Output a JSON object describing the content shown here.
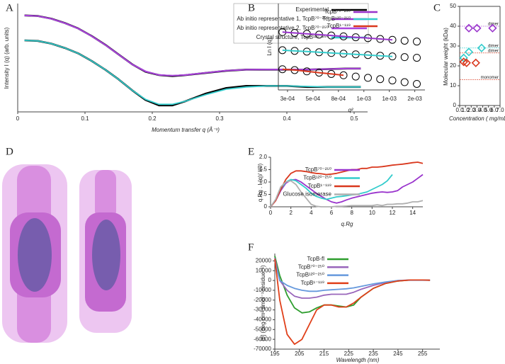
{
  "chart_data": [
    {
      "type": "line",
      "label": "A",
      "xlabel": "Momentum transfer q (Å⁻¹)",
      "ylabel": "Intensity I (q) (arb. units)",
      "xlim": [
        0,
        0.52
      ],
      "ylim": [
        0,
        100
      ],
      "xticks": [
        0,
        0.1,
        0.2,
        0.3,
        0.4,
        0.5
      ],
      "x": [
        0.01,
        0.03,
        0.05,
        0.07,
        0.09,
        0.11,
        0.13,
        0.15,
        0.17,
        0.19,
        0.21,
        0.23,
        0.25,
        0.28,
        0.31,
        0.34,
        0.37,
        0.4,
        0.43,
        0.46,
        0.49,
        0.51
      ],
      "series": [
        {
          "name": "Experimental",
          "color": "#000000",
          "values": [
            89,
            88.5,
            86,
            82,
            77,
            70,
            62,
            53,
            44,
            37,
            34,
            33,
            34,
            36,
            38,
            39,
            39,
            39,
            39,
            39.5,
            40,
            40
          ]
        },
        {
          "color": "#000000",
          "values": [
            66,
            65.5,
            63,
            59,
            54,
            47,
            39,
            30,
            20,
            11,
            6,
            6,
            10,
            17,
            22,
            24,
            24,
            24,
            23,
            23,
            23,
            23
          ]
        },
        {
          "name": "Ab initio representative 1, TcpB⁷⁰⁻²⁵⁰",
          "color": "#9933cc",
          "values": [
            89,
            88.5,
            86,
            82,
            77,
            70,
            62,
            53,
            44,
            37.5,
            34,
            33.5,
            34,
            36,
            38,
            39,
            39,
            39,
            39,
            39.5,
            40,
            40
          ]
        },
        {
          "name": "Ab initio representative 2, TcpB⁷⁰⁻²⁵⁰",
          "color": "#aa44dd",
          "values": [
            89,
            88.4,
            85.8,
            81.8,
            76.8,
            69.8,
            61.8,
            52.8,
            43.8,
            37.2,
            34.2,
            33.4,
            34.2,
            36.2,
            38.2,
            39,
            39.2,
            39.2,
            39.2,
            39.6,
            40,
            40
          ]
        },
        {
          "name": "Crystal structure, TcpB¹²⁰⁻²⁵⁰",
          "color": "#33cccc",
          "values": [
            66,
            65.5,
            63,
            59,
            54,
            47,
            39,
            30,
            20,
            11.5,
            7,
            7,
            10,
            16,
            21,
            23,
            24,
            24,
            23.5,
            23,
            23,
            23
          ]
        }
      ]
    },
    {
      "type": "scatter",
      "label": "B",
      "xlabel": "q²",
      "ylabel": "Ln I (q)",
      "marker_color": "#000000",
      "xlim": [
        0.00016,
        0.0016
      ],
      "ylim": [
        0,
        100
      ],
      "xticks": [
        {
          "value": 0.00025,
          "label": "3e-04"
        },
        {
          "value": 0.0005,
          "label": "5e-04"
        },
        {
          "value": 0.00075,
          "label": "8e-04"
        },
        {
          "value": 0.001,
          "label": "1e-03"
        },
        {
          "value": 0.00125,
          "label": "1e-03"
        },
        {
          "value": 0.0015,
          "label": "2e-03"
        }
      ],
      "x": [
        0.0002,
        0.00032,
        0.00044,
        0.00056,
        0.00068,
        0.0008,
        0.00092,
        0.00104,
        0.00116,
        0.00128,
        0.0014,
        0.00152
      ],
      "series": [
        {
          "name": "TcpB⁷⁰⁻²⁵⁰",
          "color": "#9933cc",
          "values": [
            67,
            66,
            65,
            64,
            63,
            62,
            61,
            60,
            59,
            58,
            57,
            56
          ],
          "fit": [
            67,
            66,
            65,
            64,
            63,
            62,
            61,
            60,
            59,
            58,
            null,
            null
          ]
        },
        {
          "name": "TcpB¹²⁰⁻²⁵⁰",
          "color": "#33cccc",
          "values": [
            46,
            45.2,
            44.4,
            43.6,
            42.8,
            42,
            41.2,
            40.4,
            39.6,
            38.8,
            38,
            37.2
          ],
          "fit": [
            46,
            45.2,
            44.4,
            43.6,
            42.8,
            42,
            41.2,
            40.4,
            39.6,
            38.8,
            null,
            null
          ]
        },
        {
          "name": "TcpB¹⁻¹¹⁹",
          "color": "#d9381e",
          "values": [
            24,
            23,
            21.5,
            20,
            18.5,
            17,
            15.5,
            14,
            12.5,
            11,
            9,
            7
          ],
          "fit": [
            24,
            23,
            21.5,
            20,
            18.5,
            17,
            null,
            null,
            null,
            null,
            null,
            null
          ]
        }
      ]
    },
    {
      "type": "scatter",
      "label": "C",
      "xlabel": "Concentration ( mg/mL )",
      "ylabel": "Molecular weight (kDa)",
      "marker": "diamond",
      "xlim": [
        0,
        7
      ],
      "ylim": [
        0,
        50
      ],
      "xticks": [
        {
          "value": 0,
          "label": "0.0"
        },
        {
          "value": 1,
          "label": "1.0"
        },
        {
          "value": 2,
          "label": "2.0"
        },
        {
          "value": 3,
          "label": "3.0"
        },
        {
          "value": 4,
          "label": "4.0"
        },
        {
          "value": 5,
          "label": "5.0"
        },
        {
          "value": 6,
          "label": "6.0"
        },
        {
          "value": 7,
          "label": "7.0"
        }
      ],
      "yticks": [
        0,
        10,
        20,
        30,
        40,
        50
      ],
      "hlines": [
        {
          "value": 40,
          "label": "dimer",
          "color": "#9933cc"
        },
        {
          "value": 29,
          "label": "dimer",
          "color": "#33cccc"
        },
        {
          "value": 26.5,
          "label": "dimer",
          "color": "#d9381e"
        },
        {
          "value": 13,
          "label": "monomer",
          "color": "#d9381e"
        }
      ],
      "series": [
        {
          "color": "#9933cc",
          "x": [
            1.6,
            3,
            5.7
          ],
          "values": [
            39,
            39,
            39
          ]
        },
        {
          "color": "#33cccc",
          "x": [
            0.7,
            1.6,
            3.8
          ],
          "values": [
            24,
            27,
            29
          ]
        },
        {
          "color": "#d9381e",
          "x": [
            0.7,
            1.2,
            2.8
          ],
          "values": [
            22,
            21.5,
            21.5
          ]
        }
      ]
    },
    {
      "type": "line",
      "label": "E",
      "xlabel": "q.Rg",
      "ylabel": "q.Rg . I (q)/ I(0)",
      "xlim": [
        0,
        15
      ],
      "ylim": [
        0,
        2
      ],
      "xticks": [
        0,
        2,
        4,
        6,
        8,
        10,
        12,
        14
      ],
      "yticks": [
        0,
        0.5,
        {
          "value": 1,
          "label": "1.0"
        },
        1.5,
        {
          "value": 2,
          "label": "2.0"
        }
      ],
      "x": [
        0,
        0.5,
        1,
        1.5,
        2,
        2.5,
        3,
        3.5,
        4,
        4.5,
        5,
        5.5,
        6,
        6.5,
        7,
        7.5,
        8,
        8.5,
        9,
        9.5,
        10,
        10.5,
        11,
        11.5,
        12,
        12.5,
        13,
        13.5,
        14,
        14.5,
        15
      ],
      "series": [
        {
          "name": "TcpB⁷⁰⁻²⁵⁰",
          "color": "#9933cc",
          "values": [
            0,
            0.25,
            0.65,
            0.95,
            1.08,
            1.1,
            1,
            0.85,
            0.7,
            0.55,
            0.42,
            0.3,
            0.2,
            0.15,
            0.2,
            0.28,
            0.35,
            0.4,
            0.45,
            0.5,
            0.55,
            0.58,
            0.6,
            0.58,
            0.6,
            0.65,
            0.8,
            0.9,
            1,
            1.15,
            1.3
          ]
        },
        {
          "name": "TcpB¹²⁰⁻²⁵⁰",
          "color": "#33cccc",
          "values": [
            0,
            0.28,
            0.7,
            1,
            1.1,
            1.05,
            0.9,
            0.75,
            0.55,
            0.42,
            0.35,
            0.3,
            0.35,
            0.4,
            0.42,
            0.45,
            0.48,
            0.5,
            0.55,
            0.6,
            0.7,
            0.8,
            0.9,
            1.05,
            1.3,
            null,
            null,
            null,
            null,
            null,
            null
          ]
        },
        {
          "name": "TcpB¹⁻¹¹⁹",
          "color": "#d9381e",
          "values": [
            0,
            0.25,
            0.7,
            1.1,
            1.35,
            1.45,
            1.45,
            1.42,
            1.38,
            1.35,
            1.33,
            1.3,
            1.32,
            1.35,
            1.4,
            1.45,
            1.5,
            1.5,
            1.55,
            1.55,
            1.6,
            1.6,
            1.62,
            1.65,
            1.68,
            1.7,
            1.72,
            1.75,
            1.78,
            1.8,
            1.75
          ]
        },
        {
          "name": "Glucose isomerase",
          "color": "#b0b0b0",
          "values": [
            0,
            0.3,
            0.8,
            1,
            1.05,
            0.9,
            0.6,
            0.35,
            0.1,
            0.02,
            0,
            0,
            0,
            0.02,
            0.02,
            0.03,
            0.05,
            0.05,
            0.05,
            0.05,
            0.05,
            0.08,
            0.05,
            0.1,
            0.1,
            0.12,
            0.12,
            0.15,
            0.2,
            0.2,
            0.25
          ]
        }
      ]
    },
    {
      "type": "line",
      "label": "F",
      "xlabel": "Wavelength (nm)",
      "ylabel": "[θ] (deg cm² dmol⁻¹ residue⁻¹)",
      "xlim": [
        195,
        262
      ],
      "ylim": [
        -70000,
        27500
      ],
      "xticks": [
        195,
        205,
        215,
        225,
        235,
        245,
        255
      ],
      "yticks": [
        20000,
        10000,
        0,
        -10000,
        -20000,
        -30000,
        -40000,
        -50000,
        -60000,
        -70000
      ],
      "x": [
        195,
        197,
        200,
        203,
        206,
        209,
        212,
        215,
        218,
        221,
        224,
        227,
        230,
        235,
        240,
        245,
        250,
        255,
        258
      ],
      "series": [
        {
          "name": "TcpB-fl",
          "color": "#2e9e2e",
          "values": [
            25000,
            5000,
            -15000,
            -28000,
            -33000,
            -32000,
            -28000,
            -25000,
            -25000,
            -26000,
            -27000,
            -25000,
            -17000,
            -8000,
            -3000,
            -500,
            500,
            500,
            300
          ]
        },
        {
          "name": "TcpB⁷⁰⁻²⁵⁰",
          "color": "#9966bb",
          "values": [
            23000,
            0,
            -10000,
            -16000,
            -18000,
            -18000,
            -17000,
            -15000,
            -14000,
            -14000,
            -14000,
            -12000,
            -9000,
            -5000,
            -2000,
            0,
            500,
            500,
            300
          ]
        },
        {
          "name": "TcpB¹²⁰⁻²⁵⁰",
          "color": "#6699dd",
          "values": [
            20000,
            0,
            -5000,
            -8000,
            -10000,
            -11000,
            -11000,
            -10000,
            -9500,
            -9000,
            -8500,
            -7500,
            -6000,
            -3500,
            -1500,
            0,
            300,
            300,
            200
          ]
        },
        {
          "name": "TcpB¹⁻¹¹⁹",
          "color": "#e0401a",
          "values": [
            22000,
            -20000,
            -55000,
            -65000,
            -60000,
            -45000,
            -30000,
            -25000,
            -25000,
            -27000,
            -27000,
            -23000,
            -17000,
            -8000,
            -3000,
            -500,
            500,
            500,
            300
          ]
        }
      ]
    }
  ],
  "figure_d": {
    "label": "D"
  }
}
